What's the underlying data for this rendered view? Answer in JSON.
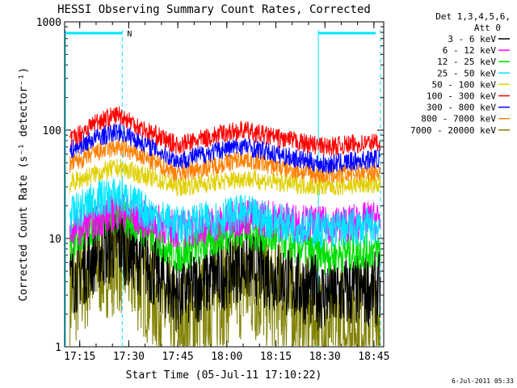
{
  "chart_data": {
    "type": "line",
    "title": "HESSI Observing Summary Count Rates, Corrected",
    "xlabel": "Start Time (05-Jul-11 17:10:22)",
    "ylabel": "Corrected Count Rate (s⁻¹ detector⁻¹)",
    "ylim": [
      1,
      1000
    ],
    "yscale": "log",
    "x_ticks": [
      "17:15",
      "17:30",
      "17:45",
      "18:00",
      "18:15",
      "18:30",
      "18:45"
    ],
    "y_ticks": [
      "1",
      "10",
      "100",
      "1000"
    ],
    "xlim_minutes": [
      17.17,
      18.8
    ],
    "legend_header": [
      "Det 1,3,4,5,6,",
      "Att 0"
    ],
    "legend_position": "top-right",
    "footer_date": "6-Jul-2011 05:33",
    "flag_label": "N",
    "series": [
      {
        "name": "3 - 6 keV",
        "color": "#000000",
        "x": [
          "17:12",
          "17:20",
          "17:27",
          "17:35",
          "17:45",
          "18:00",
          "18:05",
          "18:15",
          "18:30",
          "18:47"
        ],
        "values": [
          4,
          7,
          9,
          6,
          3,
          5,
          6,
          4.5,
          3,
          3.5
        ]
      },
      {
        "name": "6 - 12 keV",
        "color": "#ff00ff",
        "x": [
          "17:12",
          "17:20",
          "17:27",
          "17:35",
          "17:45",
          "18:00",
          "18:05",
          "18:15",
          "18:30",
          "18:47"
        ],
        "values": [
          12,
          15,
          18,
          15,
          12,
          14,
          16,
          15,
          13,
          15
        ]
      },
      {
        "name": "12 - 25 keV",
        "color": "#00dd00",
        "x": [
          "17:12",
          "17:20",
          "17:27",
          "17:35",
          "17:45",
          "18:00",
          "18:05",
          "18:15",
          "18:30",
          "18:47"
        ],
        "values": [
          9,
          14,
          17,
          12,
          7,
          11,
          12,
          10,
          7,
          8
        ]
      },
      {
        "name": "25 - 50 keV",
        "color": "#00e5ff",
        "x": [
          "17:12",
          "17:20",
          "17:27",
          "17:35",
          "17:45",
          "18:00",
          "18:05",
          "18:15",
          "18:30",
          "18:47"
        ],
        "values": [
          16,
          23,
          25,
          18,
          13,
          16,
          17,
          14,
          12,
          13
        ]
      },
      {
        "name": "50 - 100 keV",
        "color": "#e0d000",
        "x": [
          "17:12",
          "17:20",
          "17:27",
          "17:35",
          "17:45",
          "18:00",
          "18:05",
          "18:15",
          "18:30",
          "18:47"
        ],
        "values": [
          32,
          40,
          45,
          38,
          30,
          34,
          36,
          33,
          30,
          32
        ]
      },
      {
        "name": "100 - 300 keV",
        "color": "#ff0000",
        "x": [
          "17:12",
          "17:20",
          "17:27",
          "17:35",
          "17:45",
          "18:00",
          "18:05",
          "18:15",
          "18:30",
          "18:47"
        ],
        "values": [
          80,
          120,
          140,
          100,
          72,
          95,
          100,
          85,
          70,
          78
        ]
      },
      {
        "name": "300 - 800 keV",
        "color": "#0000ff",
        "x": [
          "17:12",
          "17:20",
          "17:27",
          "17:35",
          "17:45",
          "18:00",
          "18:05",
          "18:15",
          "18:30",
          "18:47"
        ],
        "values": [
          65,
          85,
          98,
          75,
          52,
          68,
          72,
          60,
          48,
          55
        ]
      },
      {
        "name": "800 - 7000 keV",
        "color": "#ff8000",
        "x": [
          "17:12",
          "17:20",
          "17:27",
          "17:35",
          "17:45",
          "18:00",
          "18:05",
          "18:15",
          "18:30",
          "18:47"
        ],
        "values": [
          48,
          62,
          70,
          55,
          40,
          50,
          55,
          46,
          38,
          42
        ]
      },
      {
        "name": "7000 - 20000 keV",
        "color": "#808000",
        "x": [
          "17:12",
          "17:20",
          "17:27",
          "17:35",
          "17:45",
          "18:00",
          "18:05",
          "18:15",
          "18:30",
          "18:47"
        ],
        "values": [
          3,
          6,
          7,
          4,
          1.5,
          3.5,
          4,
          3,
          1.5,
          2
        ]
      }
    ],
    "vertical_markers": [
      {
        "x": "17:10",
        "style": "solid",
        "color": "#00e5ff"
      },
      {
        "x": "17:28",
        "style": "dashed",
        "color": "#00e5ff"
      },
      {
        "x": "18:28",
        "style": "solid",
        "color": "#00e5ff"
      },
      {
        "x": "18:47",
        "style": "dashed",
        "color": "#00e5ff"
      }
    ],
    "flag_bars": [
      {
        "from": "17:10",
        "to": "17:28",
        "color": "#00e5ff"
      },
      {
        "from": "18:28",
        "to": "18:47",
        "color": "#00e5ff"
      }
    ]
  }
}
